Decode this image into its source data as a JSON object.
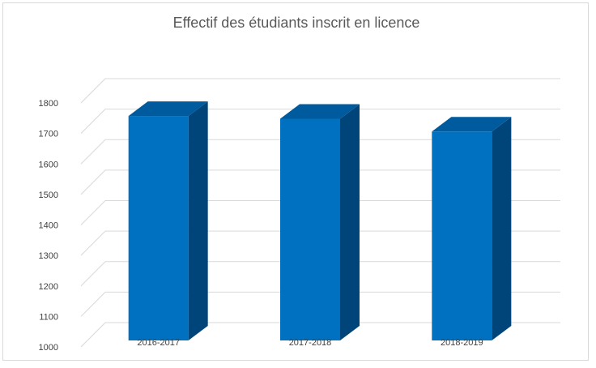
{
  "chart_data": {
    "type": "bar",
    "title": "Effectif des étudiants inscrit en licence",
    "categories": [
      "2016-2017",
      "2017-2018",
      "2018-2019"
    ],
    "series": [
      {
        "values": [
          1736,
          1727,
          1685
        ]
      }
    ],
    "ylim": [
      1000,
      1800
    ],
    "yticks": [
      1000,
      1100,
      1200,
      1300,
      1400,
      1500,
      1600,
      1700,
      1800
    ],
    "grid": true,
    "legend": "none",
    "colors": {
      "bar_front": "#0070c0",
      "bar_side": "#00457a",
      "bar_top": "#005a9e",
      "grid": "#d9d9d9"
    }
  }
}
